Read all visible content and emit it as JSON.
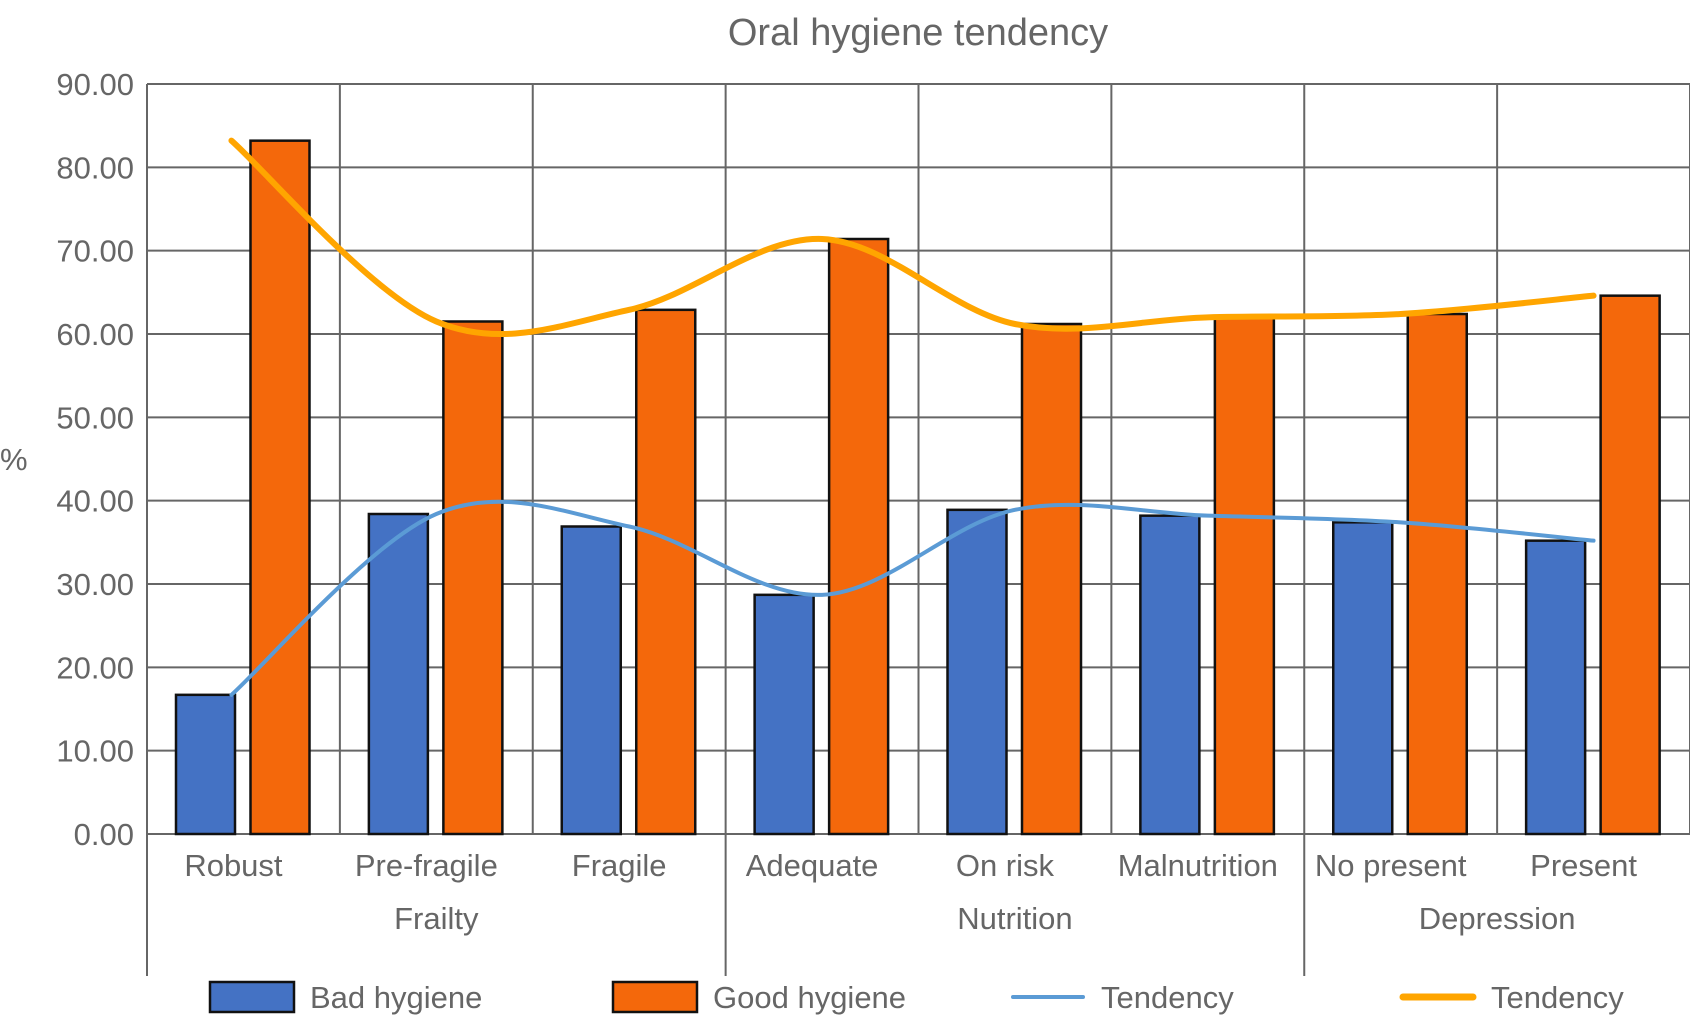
{
  "chart_data": {
    "type": "bar",
    "title": "Oral hygiene tendency",
    "xlabel": "",
    "ylabel": "%",
    "ylim": [
      0,
      90
    ],
    "yticks": [
      "0.00",
      "10.00",
      "20.00",
      "30.00",
      "40.00",
      "50.00",
      "60.00",
      "70.00",
      "80.00",
      "90.00"
    ],
    "grid": true,
    "legend_position": "bottom",
    "categories": [
      "Robust",
      "Pre-fragile",
      "Fragile",
      "Adequate",
      "On risk",
      "Malnutrition",
      "No present",
      "Present"
    ],
    "groups": [
      {
        "label": "Frailty",
        "categories": [
          "Robust",
          "Pre-fragile",
          "Fragile"
        ]
      },
      {
        "label": "Nutrition",
        "categories": [
          "Adequate",
          "On risk",
          "Malnutrition"
        ]
      },
      {
        "label": "Depression",
        "categories": [
          "No present",
          "Present"
        ]
      }
    ],
    "series": [
      {
        "name": "Bad hygiene",
        "kind": "bar",
        "color": "#4472C4",
        "values": [
          16.7,
          38.4,
          36.9,
          28.7,
          38.9,
          38.2,
          37.4,
          35.2
        ]
      },
      {
        "name": "Good hygiene",
        "kind": "bar",
        "color": "#F4680B",
        "values": [
          83.2,
          61.5,
          62.9,
          71.4,
          61.2,
          62.0,
          62.4,
          64.6
        ]
      },
      {
        "name": "Tendency",
        "kind": "line",
        "color": "#5B9BD5",
        "of": "Bad hygiene",
        "values": [
          16.7,
          38.4,
          36.9,
          28.7,
          38.9,
          38.2,
          37.4,
          35.2
        ]
      },
      {
        "name": "Tendency",
        "kind": "line",
        "color": "#FFA500",
        "of": "Good hygiene",
        "values": [
          83.2,
          61.5,
          62.9,
          71.4,
          61.2,
          62.0,
          62.4,
          64.6
        ]
      }
    ]
  }
}
